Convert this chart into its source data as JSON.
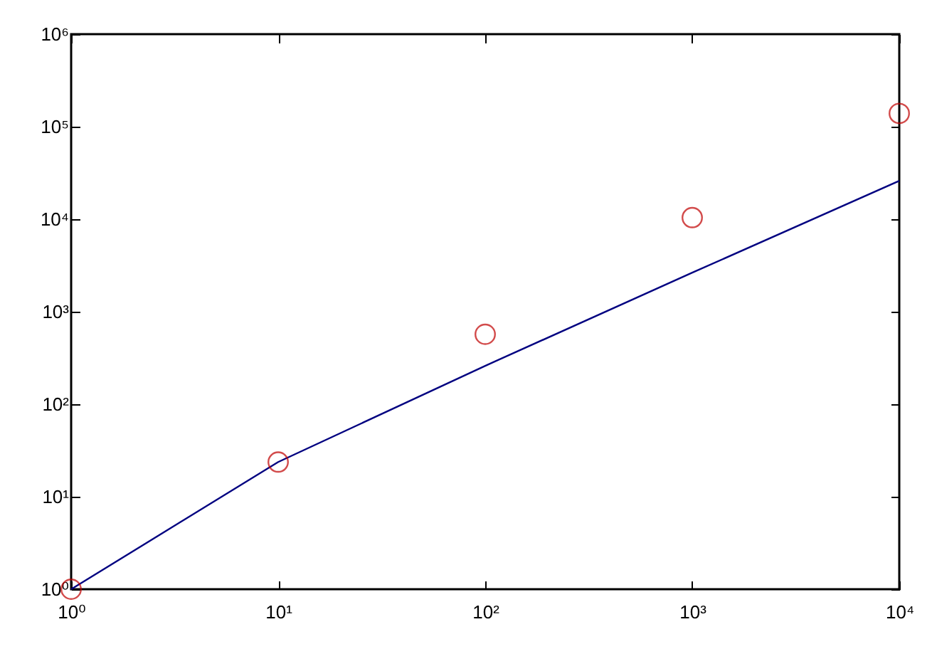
{
  "chart_data": {
    "type": "scatter",
    "log": "xy",
    "grid": false,
    "legend": false,
    "x": [
      1,
      10,
      100,
      1000,
      10000
    ],
    "series": [
      {
        "color": "#c00000",
        "marker": "circle",
        "values": [
          1,
          23.7,
          570,
          10400,
          139000
        ]
      },
      {
        "type": "line",
        "color": "#000080",
        "line_style": "solid",
        "values": [
          1,
          23.7,
          260,
          2640,
          26000
        ]
      }
    ],
    "xlim": [
      1,
      10000
    ],
    "ylim": [
      1,
      1000000
    ],
    "xticks": [
      {
        "value": 1,
        "label": "10⁰"
      },
      {
        "value": 10,
        "label": "10¹"
      },
      {
        "value": 100,
        "label": "10²"
      },
      {
        "value": 1000,
        "label": "10³"
      },
      {
        "value": 10000,
        "label": "10⁴"
      }
    ],
    "yticks": [
      {
        "value": 1,
        "label": "10⁰"
      },
      {
        "value": 10,
        "label": "10¹"
      },
      {
        "value": 100,
        "label": "10²"
      },
      {
        "value": 1000,
        "label": "10³"
      },
      {
        "value": 10000,
        "label": "10⁴"
      },
      {
        "value": 100000,
        "label": "10⁵"
      },
      {
        "value": 1000000,
        "label": "10⁶"
      }
    ]
  }
}
